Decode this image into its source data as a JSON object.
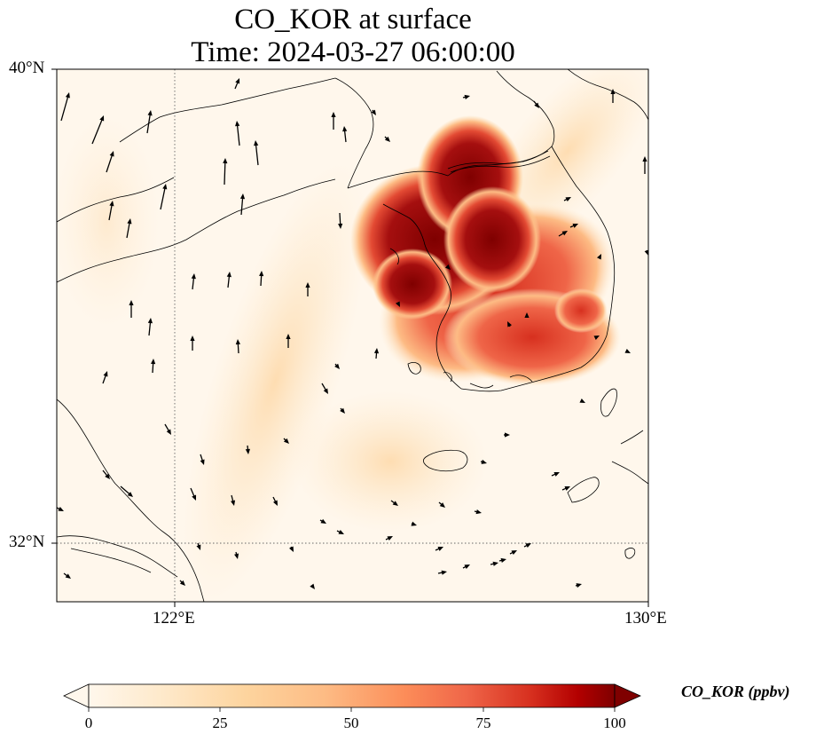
{
  "title": "CO_KOR at surface",
  "subtitle": "Time: 2024-03-27 06:00:00",
  "axes": {
    "lat_labels": [
      "40°N",
      "32°N"
    ],
    "lon_labels": [
      "122°E",
      "130°E"
    ],
    "lat_values": [
      40,
      32
    ],
    "lon_values": [
      122,
      130
    ],
    "extent": {
      "lon_min": 120,
      "lon_max": 130,
      "lat_min": 31,
      "lat_max": 40
    }
  },
  "colorbar": {
    "label": "CO_KOR (ppbv)",
    "ticks": [
      "0",
      "25",
      "50",
      "75",
      "100"
    ],
    "tick_values": [
      0,
      25,
      50,
      75,
      100
    ],
    "colormap": "OrRd",
    "extend": "both",
    "colors": [
      "#fff7ec",
      "#fee8c8",
      "#fdd49e",
      "#fdbb84",
      "#fc8d59",
      "#ef6548",
      "#d7301f",
      "#b30000",
      "#7f0000"
    ]
  },
  "map": {
    "field": "CO_KOR",
    "units": "ppbv",
    "background_color": "#fff7ec",
    "coastline_color": "#000000",
    "gridline_style": "dotted",
    "wind_vectors": true
  }
}
